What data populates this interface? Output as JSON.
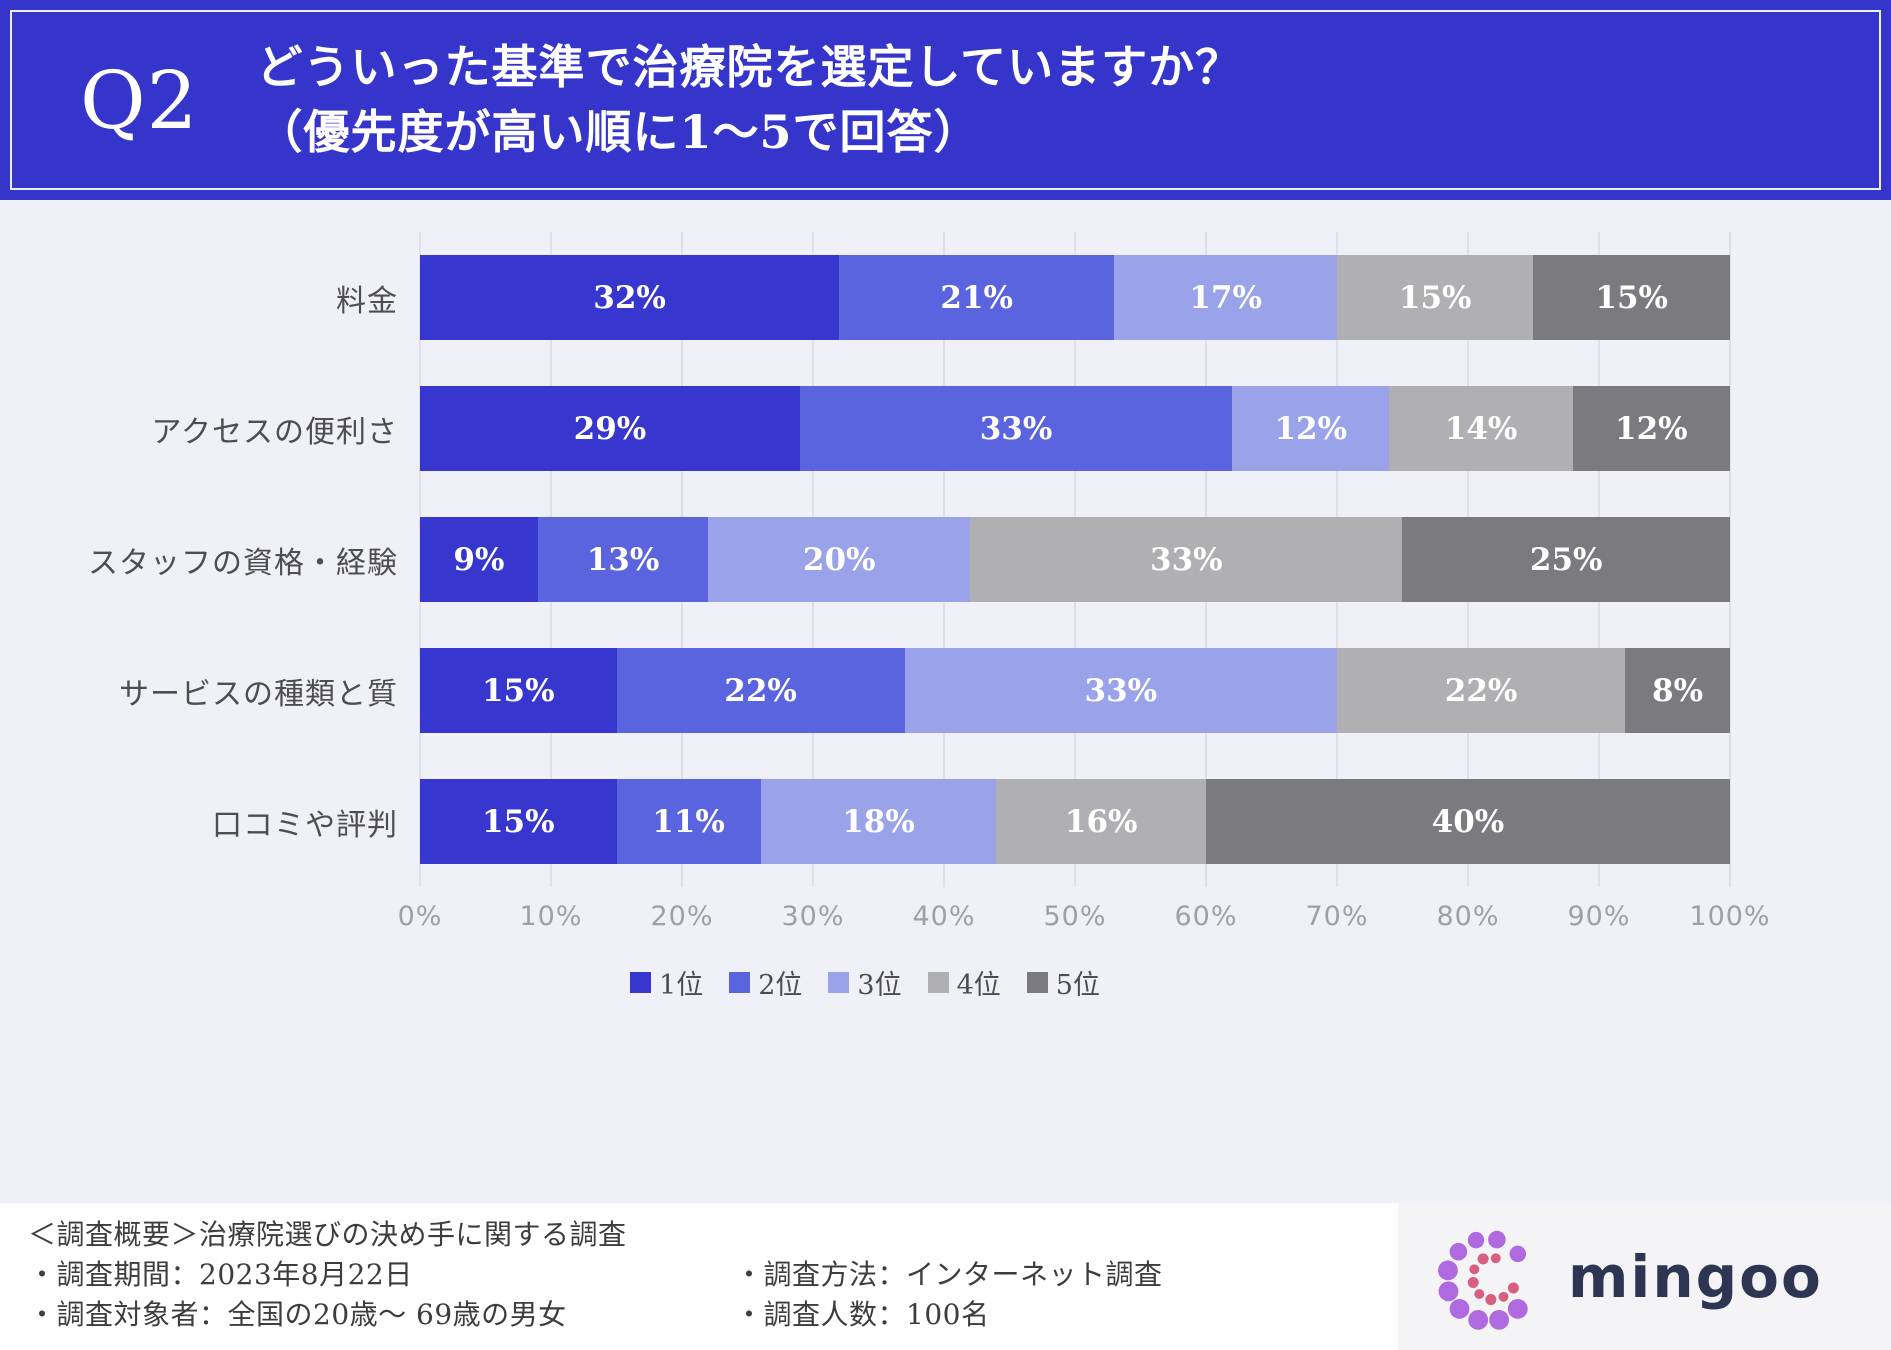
{
  "header": {
    "q_label": "Q2",
    "title_line1": "どういった基準で治療院を選定していますか？",
    "title_line2": "（優先度が高い順に1〜5で回答）",
    "bg_color": "#3535cb"
  },
  "chart_data": {
    "type": "bar",
    "stacked": true,
    "orientation": "horizontal",
    "categories": [
      "料金",
      "アクセスの便利さ",
      "スタッフの資格・経験",
      "サービスの種類と質",
      "口コミや評判"
    ],
    "series": [
      {
        "name": "1位",
        "color": "#3737d0",
        "values": [
          32,
          29,
          9,
          15,
          15
        ]
      },
      {
        "name": "2位",
        "color": "#5a64de",
        "values": [
          21,
          33,
          13,
          22,
          11
        ]
      },
      {
        "name": "3位",
        "color": "#9aa3ea",
        "values": [
          17,
          12,
          20,
          33,
          18
        ]
      },
      {
        "name": "4位",
        "color": "#b0b0b3",
        "values": [
          15,
          14,
          33,
          22,
          16
        ]
      },
      {
        "name": "5位",
        "color": "#7b7b7f",
        "values": [
          15,
          12,
          25,
          8,
          40
        ]
      }
    ],
    "x_ticks": [
      "0%",
      "10%",
      "20%",
      "30%",
      "40%",
      "50%",
      "60%",
      "70%",
      "80%",
      "90%",
      "100%"
    ],
    "xlim": [
      0,
      100
    ],
    "value_suffix": "%",
    "grid": true,
    "legend_position": "bottom"
  },
  "footer": {
    "heading": "＜調査概要＞治療院選びの決め手に関する調査",
    "period": "・調査期間：2023年8月22日",
    "subjects": "・調査対象者：全国の20歳〜 69歳の男女",
    "method": "・調査方法：インターネット調査",
    "count": "・調査人数：100名"
  },
  "logo": {
    "text": "mingoo",
    "purple": "#b06ae0",
    "pink": "#d95f80",
    "text_color": "#2d3553"
  }
}
